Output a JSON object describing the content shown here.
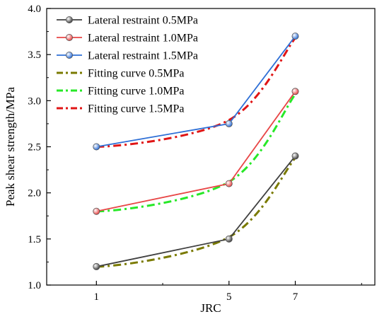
{
  "chart_data": {
    "type": "line",
    "title": "",
    "xlabel": "JRC",
    "ylabel": "Peak shear strength/MPa",
    "x": [
      1,
      5,
      7
    ],
    "xlim": [
      -0.5,
      9.4
    ],
    "ylim": [
      1.0,
      4.0
    ],
    "xticks": [
      1,
      5,
      7
    ],
    "yticks": [
      1.0,
      1.5,
      2.0,
      2.5,
      3.0,
      3.5,
      4.0
    ],
    "ytick_labels": [
      "1.0",
      "1.5",
      "2.0",
      "2.5",
      "3.0",
      "3.5",
      "4.0"
    ],
    "grid": false,
    "legend_position": "top-left",
    "series": [
      {
        "name": "Lateral restraint 0.5MPa",
        "style": "solid-marker",
        "color": "#404040",
        "values": [
          1.2,
          1.5,
          2.4
        ]
      },
      {
        "name": "Lateral restraint 1.0MPa",
        "style": "solid-marker",
        "color": "#e84646",
        "values": [
          1.8,
          2.1,
          3.1
        ]
      },
      {
        "name": "Lateral restraint 1.5MPa",
        "style": "solid-marker",
        "color": "#2e6fd6",
        "values": [
          2.5,
          2.75,
          3.7
        ]
      },
      {
        "name": "Fitting curve 0.5MPa",
        "style": "dashdot-curve",
        "color": "#7a7a00",
        "values": [
          1.2,
          1.52,
          2.38
        ]
      },
      {
        "name": "Fitting curve 1.0MPa",
        "style": "dashdot-curve",
        "color": "#27e827",
        "values": [
          1.8,
          2.12,
          3.07
        ]
      },
      {
        "name": "Fitting curve 1.5MPa",
        "style": "dashdot-curve",
        "color": "#e01515",
        "values": [
          2.5,
          2.79,
          3.68
        ]
      }
    ]
  }
}
